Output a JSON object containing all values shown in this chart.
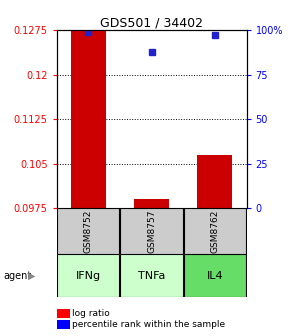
{
  "title": "GDS501 / 34402",
  "samples": [
    "GSM8752",
    "GSM8757",
    "GSM8762"
  ],
  "agents": [
    "IFNg",
    "TNFa",
    "IL4"
  ],
  "log_ratios": [
    0.1275,
    0.099,
    0.1065
  ],
  "percentile_ranks": [
    99.0,
    88.0,
    97.5
  ],
  "ylim_left": [
    0.0975,
    0.1275
  ],
  "ylim_right": [
    0,
    100
  ],
  "yticks_left": [
    0.0975,
    0.105,
    0.1125,
    0.12,
    0.1275
  ],
  "yticks_right": [
    0,
    25,
    50,
    75,
    100
  ],
  "ytick_labels_left": [
    "0.0975",
    "0.105",
    "0.1125",
    "0.12",
    "0.1275"
  ],
  "ytick_labels_right": [
    "0",
    "25",
    "50",
    "75",
    "100%"
  ],
  "bar_color": "#cc0000",
  "dot_color": "#2222cc",
  "sample_box_color": "#cccccc",
  "agent_colors": [
    "#ccffcc",
    "#ccffcc",
    "#66dd66"
  ],
  "bar_width": 0.55,
  "baseline": 0.0975,
  "x_positions": [
    0,
    1,
    2
  ],
  "xlim": [
    -0.5,
    2.5
  ]
}
